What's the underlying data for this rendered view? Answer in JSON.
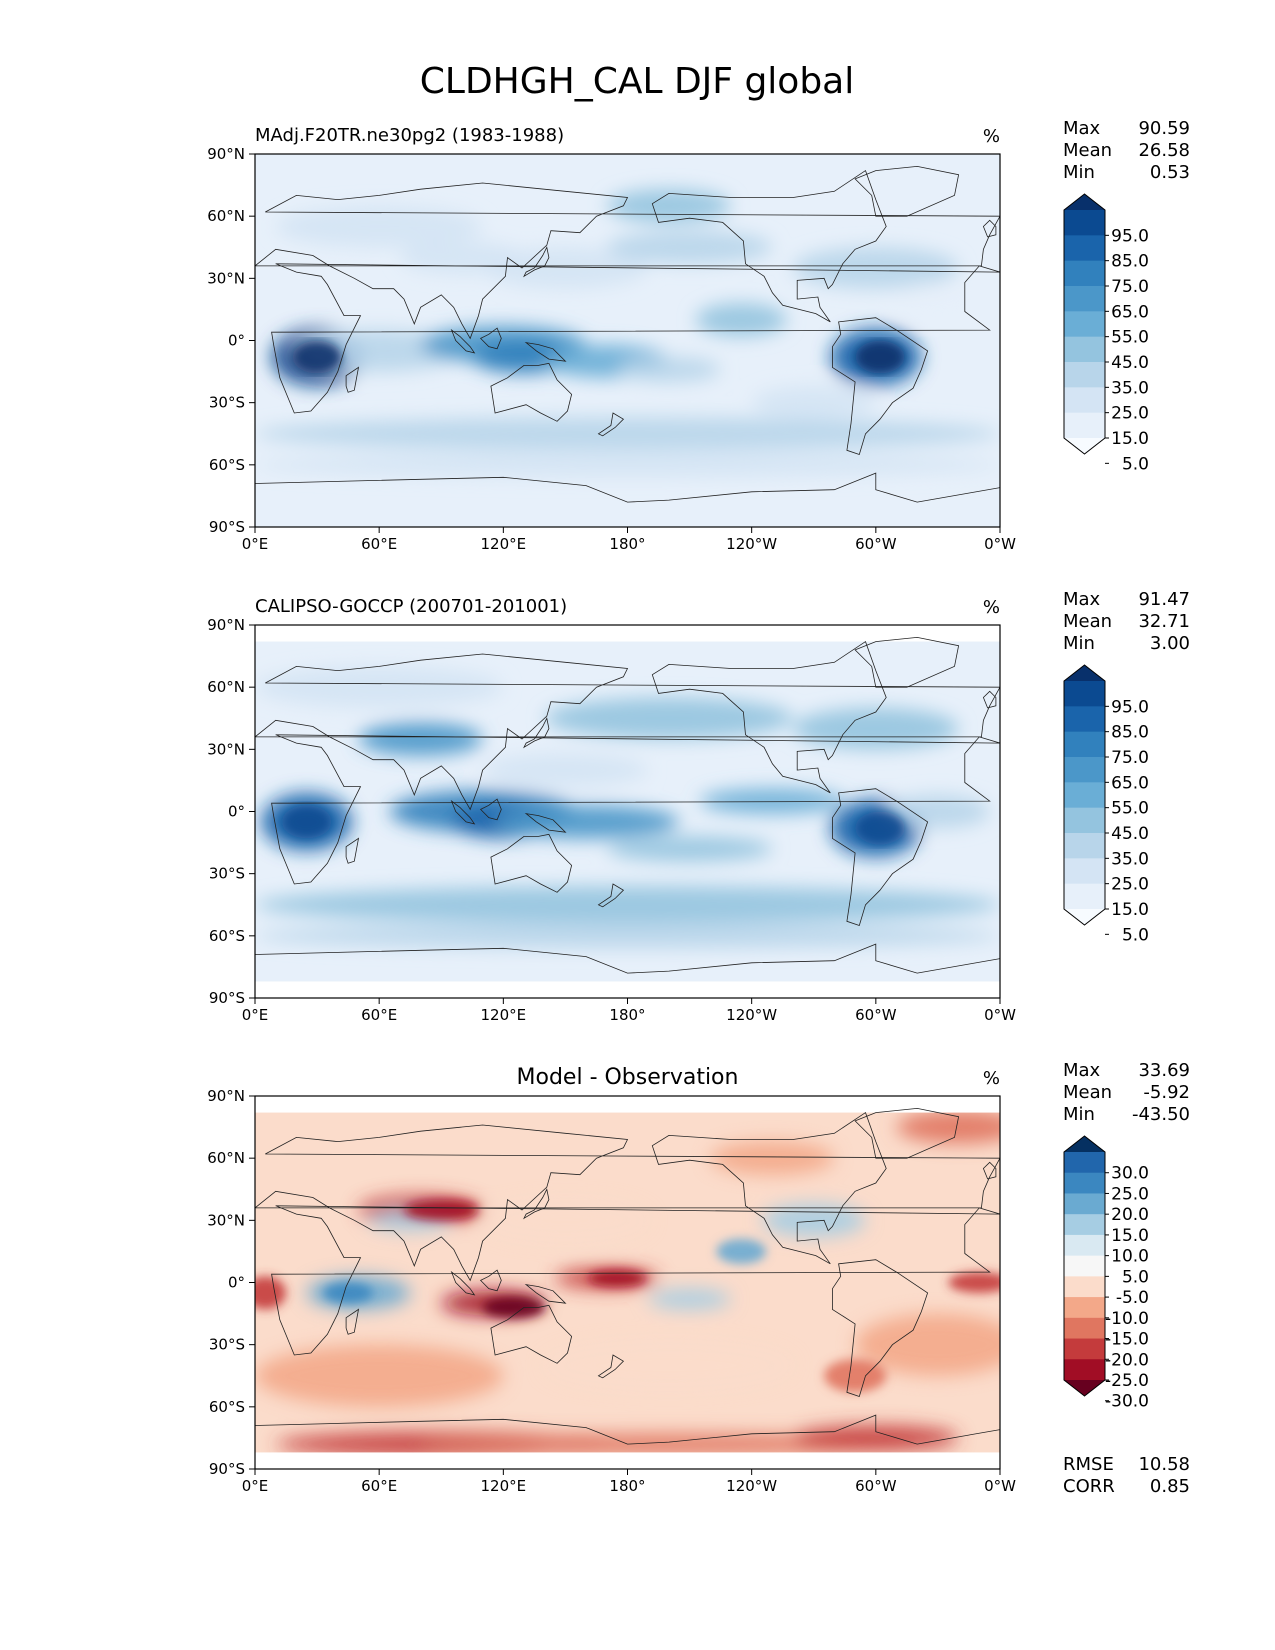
{
  "chart_data": {
    "type": "heatmap",
    "title": "CLDHGH_CAL DJF global",
    "panels": [
      {
        "id": "model",
        "left_title": "MAdj.F20TR.ne30pg2 (1983-1988)",
        "center_title": "",
        "units": "%",
        "stats": [
          {
            "label": "Max",
            "value": "90.59"
          },
          {
            "label": "Mean",
            "value": "26.58"
          },
          {
            "label": "Min",
            "value": "0.53"
          }
        ],
        "colorbar": {
          "levels": [
            "95.0",
            "85.0",
            "75.0",
            "65.0",
            "55.0",
            "45.0",
            "35.0",
            "25.0",
            "15.0",
            "5.0"
          ],
          "colors": [
            "#08306b",
            "#0b4a91",
            "#1a64ab",
            "#3181bd",
            "#4b97c9",
            "#6aaed6",
            "#94c4df",
            "#b8d5ea",
            "#d4e4f4",
            "#e7f0fa",
            "#f7fbff"
          ]
        },
        "footer": []
      },
      {
        "id": "obs",
        "left_title": "CALIPSO-GOCCP (200701-201001)",
        "center_title": "",
        "units": "%",
        "stats": [
          {
            "label": "Max",
            "value": "91.47"
          },
          {
            "label": "Mean",
            "value": "32.71"
          },
          {
            "label": "Min",
            "value": "3.00"
          }
        ],
        "colorbar": {
          "levels": [
            "95.0",
            "85.0",
            "75.0",
            "65.0",
            "55.0",
            "45.0",
            "35.0",
            "25.0",
            "15.0",
            "5.0"
          ],
          "colors": [
            "#08306b",
            "#0b4a91",
            "#1a64ab",
            "#3181bd",
            "#4b97c9",
            "#6aaed6",
            "#94c4df",
            "#b8d5ea",
            "#d4e4f4",
            "#e7f0fa",
            "#f7fbff"
          ]
        },
        "footer": []
      },
      {
        "id": "diff",
        "left_title": "",
        "center_title": "Model - Observation",
        "units": "%",
        "stats": [
          {
            "label": "Max",
            "value": "33.69"
          },
          {
            "label": "Mean",
            "value": "-5.92"
          },
          {
            "label": "Min",
            "value": "-43.50"
          }
        ],
        "colorbar": {
          "levels": [
            "30.0",
            "25.0",
            "20.0",
            "15.0",
            "10.0",
            "5.0",
            "-5.0",
            "-10.0",
            "-15.0",
            "-20.0",
            "-25.0",
            "-30.0"
          ],
          "colors": [
            "#053061",
            "#2166ac",
            "#3b87c0",
            "#6aaad1",
            "#a6cde3",
            "#d9e9f2",
            "#f7f7f7",
            "#fbdccb",
            "#f3a889",
            "#e07660",
            "#c43b3c",
            "#a10d25",
            "#67001f"
          ]
        },
        "footer": [
          {
            "label": "RMSE",
            "value": "10.58"
          },
          {
            "label": "CORR",
            "value": "0.85"
          }
        ]
      }
    ],
    "x_ticks": [
      "0°E",
      "60°E",
      "120°E",
      "180°",
      "120°W",
      "60°W",
      "0°W"
    ],
    "y_ticks": [
      "90°N",
      "60°N",
      "30°N",
      "0°",
      "30°S",
      "60°S",
      "90°S"
    ],
    "x_values": [
      0,
      60,
      120,
      180,
      240,
      300,
      360
    ],
    "y_values": [
      90,
      60,
      30,
      0,
      -30,
      -60,
      -90
    ],
    "xlim": [
      0,
      360
    ],
    "ylim": [
      -90,
      90
    ]
  }
}
